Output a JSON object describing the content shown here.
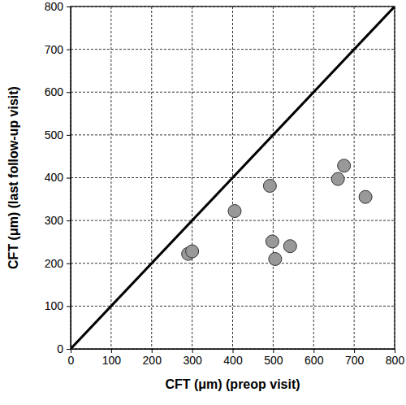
{
  "chart_data": {
    "type": "scatter",
    "x_label": "CFT (μm) (preop visit)",
    "y_label": "CFT (μm) (last follow-up visit)",
    "x": [
      290,
      300,
      405,
      492,
      498,
      505,
      542,
      660,
      675,
      728
    ],
    "values": [
      222,
      228,
      322,
      381,
      251,
      210,
      240,
      397,
      428,
      355
    ],
    "color": "#999999",
    "marker": "circle",
    "xlim": [
      0,
      800
    ],
    "ylim": [
      0,
      800
    ],
    "xticks": [
      0,
      100,
      200,
      300,
      400,
      500,
      600,
      700,
      800
    ],
    "yticks": [
      0,
      100,
      200,
      300,
      400,
      500,
      600,
      700,
      800
    ],
    "grid": true
  }
}
